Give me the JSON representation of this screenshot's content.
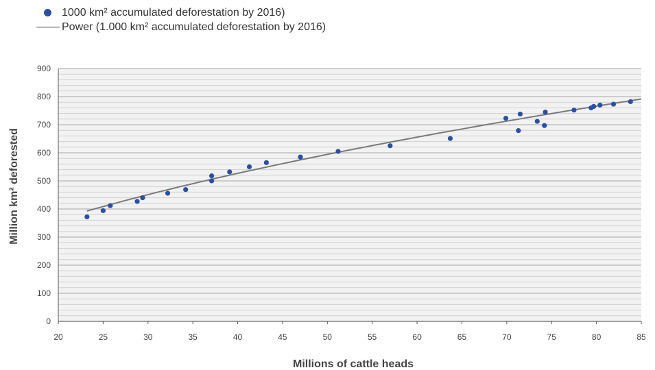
{
  "chart_data": {
    "type": "scatter",
    "xlabel": "Millions of cattle heads",
    "ylabel": "Million km² deforested",
    "xlim": [
      20,
      85
    ],
    "ylim": [
      0,
      900
    ],
    "x_ticks": [
      "20",
      "25",
      "30",
      "35",
      "40",
      "45",
      "50",
      "55",
      "60",
      "65",
      "70",
      "75",
      "80",
      "85"
    ],
    "y_ticks": [
      "0",
      "100",
      "200",
      "300",
      "400",
      "500",
      "600",
      "700",
      "800",
      "900"
    ],
    "grid": true,
    "legend_position": "top-left",
    "series": [
      {
        "name": "1000 km² accumulated deforestation by 2016)",
        "color": "#2b4fa3",
        "points": [
          [
            23.2,
            372
          ],
          [
            25.0,
            394
          ],
          [
            25.8,
            412
          ],
          [
            28.8,
            427
          ],
          [
            29.4,
            440
          ],
          [
            32.2,
            456
          ],
          [
            34.2,
            469
          ],
          [
            37.1,
            500
          ],
          [
            37.1,
            518
          ],
          [
            39.1,
            532
          ],
          [
            41.3,
            550
          ],
          [
            43.2,
            565
          ],
          [
            47.0,
            585
          ],
          [
            51.2,
            605
          ],
          [
            57.0,
            625
          ],
          [
            63.7,
            651
          ],
          [
            69.9,
            723
          ],
          [
            71.3,
            679
          ],
          [
            71.5,
            738
          ],
          [
            73.4,
            712
          ],
          [
            74.2,
            697
          ],
          [
            74.3,
            745
          ],
          [
            77.5,
            752
          ],
          [
            79.4,
            760
          ],
          [
            79.7,
            765
          ],
          [
            80.4,
            770
          ],
          [
            81.9,
            773
          ],
          [
            83.8,
            782
          ]
        ]
      },
      {
        "name": "Power (1.000 km² accumulated deforestation by 2016)",
        "color": "#7a7a7a",
        "trend": {
          "model": "power",
          "a": 71.87,
          "b": 0.54
        }
      }
    ]
  }
}
